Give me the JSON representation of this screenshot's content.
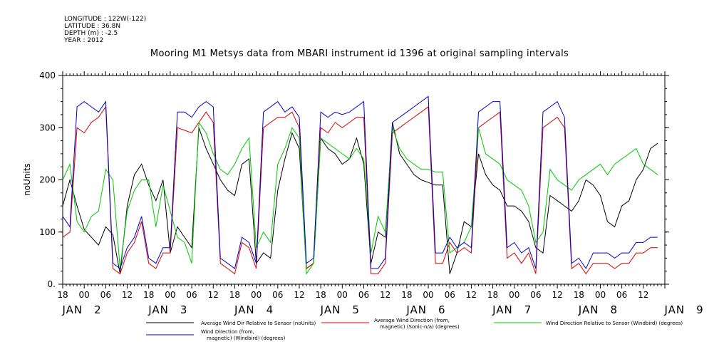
{
  "metadata": {
    "longitude": "LONGITUDE : 122W(-122)",
    "latitude": "LATITUDE : 36.8N",
    "depth": "DEPTH (m) : -2.5",
    "year": "YEAR : 2012"
  },
  "chart_data": {
    "type": "line",
    "title": "Mooring M1 Metsys data from MBARI instrument id 1396 at original sampling intervals",
    "ylabel": "noUnits",
    "xlabel": "",
    "ylim": [
      0,
      400
    ],
    "y_ticks": [
      "0.",
      "100",
      "200",
      "300",
      "400"
    ],
    "x_hour_labels": [
      "18",
      "00",
      "06",
      "12",
      "18",
      "00",
      "06",
      "12",
      "18",
      "00",
      "06",
      "12",
      "18",
      "00",
      "06",
      "12",
      "18",
      "00",
      "06",
      "12",
      "18",
      "00",
      "06",
      "12",
      "18",
      "00",
      "06",
      "12"
    ],
    "x_day_labels": [
      {
        "month": "JAN",
        "day": "2"
      },
      {
        "month": "JAN",
        "day": "3"
      },
      {
        "month": "JAN",
        "day": "4"
      },
      {
        "month": "JAN",
        "day": "5"
      },
      {
        "month": "JAN",
        "day": "6"
      },
      {
        "month": "JAN",
        "day": "7"
      },
      {
        "month": "JAN",
        "day": "8"
      },
      {
        "month": "JAN",
        "day": "9"
      }
    ],
    "x_unit": "hours since 2012-01-01 18:00",
    "series": [
      {
        "name": "Average Wind Dir Relative to Sensor (noUnits)",
        "color": "#000000",
        "x": [
          0,
          2,
          4,
          6,
          8,
          10,
          12,
          14,
          16,
          18,
          20,
          22,
          24,
          26,
          28,
          30,
          32,
          34,
          36,
          38,
          40,
          42,
          44,
          46,
          48,
          50,
          52,
          54,
          56,
          58,
          60,
          62,
          64,
          66,
          68,
          70,
          72,
          74,
          76,
          78,
          80,
          82,
          84,
          86,
          88,
          90,
          92,
          94,
          96,
          98,
          100,
          102,
          104,
          106,
          108,
          110,
          112,
          114,
          116,
          118,
          120,
          122,
          124,
          126,
          128,
          130,
          132,
          134,
          136,
          138,
          140,
          142,
          144,
          146,
          148,
          150,
          152,
          154,
          156,
          158,
          160,
          162,
          164,
          166
        ],
        "values": [
          150,
          200,
          150,
          105,
          90,
          75,
          110,
          95,
          20,
          150,
          210,
          230,
          190,
          160,
          200,
          60,
          110,
          90,
          70,
          300,
          260,
          230,
          200,
          180,
          170,
          230,
          240,
          40,
          60,
          50,
          180,
          240,
          290,
          260,
          30,
          40,
          280,
          260,
          250,
          230,
          240,
          280,
          230,
          40,
          100,
          90,
          310,
          250,
          230,
          210,
          200,
          195,
          190,
          190,
          20,
          60,
          120,
          110,
          250,
          210,
          190,
          180,
          150,
          150,
          140,
          120,
          70,
          60,
          170,
          160,
          150,
          140,
          160,
          200,
          190,
          170,
          120,
          110,
          150,
          160,
          200,
          220,
          260,
          270
        ]
      },
      {
        "name": "Average Wind Direction (from, magnetic) (Sonic-n/a) (degrees)",
        "color": "#d40000",
        "x": [
          0,
          2,
          4,
          6,
          8,
          10,
          12,
          14,
          16,
          18,
          20,
          22,
          24,
          26,
          28,
          30,
          32,
          34,
          36,
          38,
          40,
          42,
          44,
          46,
          48,
          50,
          52,
          54,
          56,
          58,
          60,
          62,
          64,
          66,
          68,
          70,
          72,
          74,
          76,
          78,
          80,
          82,
          84,
          86,
          88,
          90,
          92,
          94,
          96,
          98,
          100,
          102,
          104,
          106,
          108,
          110,
          112,
          114,
          116,
          118,
          120,
          122,
          124,
          126,
          128,
          130,
          132,
          134,
          136,
          138,
          140,
          142,
          144,
          146,
          148,
          150,
          152,
          154,
          156,
          158,
          160,
          162,
          164,
          166
        ],
        "values": [
          90,
          100,
          300,
          290,
          310,
          320,
          340,
          30,
          20,
          60,
          80,
          120,
          40,
          30,
          60,
          60,
          300,
          295,
          290,
          310,
          330,
          310,
          40,
          30,
          20,
          80,
          70,
          30,
          300,
          310,
          320,
          320,
          330,
          300,
          30,
          40,
          300,
          290,
          310,
          300,
          310,
          320,
          320,
          20,
          20,
          40,
          290,
          300,
          310,
          320,
          330,
          340,
          40,
          40,
          80,
          60,
          70,
          60,
          300,
          310,
          320,
          330,
          50,
          60,
          40,
          60,
          20,
          300,
          310,
          320,
          300,
          30,
          40,
          20,
          40,
          40,
          40,
          30,
          40,
          40,
          60,
          60,
          70,
          70
        ]
      },
      {
        "name": "Wind Direction Relative to Sensor (Windbird) (degrees)",
        "color": "#00c800",
        "x": [
          0,
          2,
          4,
          6,
          8,
          10,
          12,
          14,
          16,
          18,
          20,
          22,
          24,
          26,
          28,
          30,
          32,
          34,
          36,
          38,
          40,
          42,
          44,
          46,
          48,
          50,
          52,
          54,
          56,
          58,
          60,
          62,
          64,
          66,
          68,
          70,
          72,
          74,
          76,
          78,
          80,
          82,
          84,
          86,
          88,
          90,
          92,
          94,
          96,
          98,
          100,
          102,
          104,
          106,
          108,
          110,
          112,
          114,
          116,
          118,
          120,
          122,
          124,
          126,
          128,
          130,
          132,
          134,
          136,
          138,
          140,
          142,
          144,
          146,
          148,
          150,
          152,
          154,
          156,
          158,
          160,
          162,
          164,
          166
        ],
        "values": [
          200,
          230,
          120,
          100,
          130,
          140,
          220,
          200,
          30,
          140,
          180,
          200,
          200,
          110,
          190,
          140,
          90,
          80,
          40,
          310,
          290,
          250,
          220,
          210,
          230,
          260,
          280,
          70,
          100,
          80,
          230,
          260,
          300,
          280,
          20,
          40,
          280,
          270,
          260,
          250,
          240,
          260,
          240,
          60,
          130,
          100,
          300,
          260,
          240,
          230,
          220,
          220,
          215,
          215,
          60,
          70,
          80,
          110,
          300,
          250,
          240,
          230,
          200,
          190,
          180,
          150,
          80,
          100,
          220,
          200,
          190,
          180,
          200,
          210,
          220,
          230,
          210,
          230,
          240,
          250,
          260,
          230,
          220,
          210
        ]
      },
      {
        "name": "Wind Direction (from, magnetic) (Windbird) (degrees)",
        "color": "#0000cc",
        "x": [
          0,
          2,
          4,
          6,
          8,
          10,
          12,
          14,
          16,
          18,
          20,
          22,
          24,
          26,
          28,
          30,
          32,
          34,
          36,
          38,
          40,
          42,
          44,
          46,
          48,
          50,
          52,
          54,
          56,
          58,
          60,
          62,
          64,
          66,
          68,
          70,
          72,
          74,
          76,
          78,
          80,
          82,
          84,
          86,
          88,
          90,
          92,
          94,
          96,
          98,
          100,
          102,
          104,
          106,
          108,
          110,
          112,
          114,
          116,
          118,
          120,
          122,
          124,
          126,
          128,
          130,
          132,
          134,
          136,
          138,
          140,
          142,
          144,
          146,
          148,
          150,
          152,
          154,
          156,
          158,
          160,
          162,
          164,
          166
        ],
        "values": [
          130,
          110,
          340,
          350,
          340,
          330,
          350,
          40,
          30,
          70,
          90,
          130,
          50,
          40,
          70,
          70,
          330,
          330,
          320,
          340,
          350,
          340,
          50,
          40,
          30,
          90,
          80,
          40,
          330,
          340,
          350,
          330,
          340,
          320,
          40,
          50,
          330,
          320,
          330,
          325,
          330,
          340,
          350,
          30,
          30,
          50,
          310,
          320,
          330,
          340,
          350,
          360,
          60,
          60,
          90,
          70,
          80,
          70,
          330,
          340,
          350,
          350,
          70,
          80,
          60,
          70,
          30,
          330,
          340,
          350,
          320,
          40,
          50,
          30,
          60,
          60,
          60,
          50,
          60,
          60,
          80,
          80,
          90,
          90
        ]
      }
    ],
    "legend": [
      {
        "label_lines": [
          "Average Wind Dir Relative to Sensor (noUnits)"
        ],
        "color": "#000000"
      },
      {
        "label_lines": [
          "Average Wind Direction (from,",
          "magnetic) (Sonic-n/a) (degrees)"
        ],
        "color": "#d40000"
      },
      {
        "label_lines": [
          "Wind Direction Relative to Sensor (Windbird) (degrees)"
        ],
        "color": "#00c800"
      },
      {
        "label_lines": [
          "Wind Direction (from,",
          "magnetic) (Windbird) (degrees)"
        ],
        "color": "#0000cc"
      }
    ]
  }
}
